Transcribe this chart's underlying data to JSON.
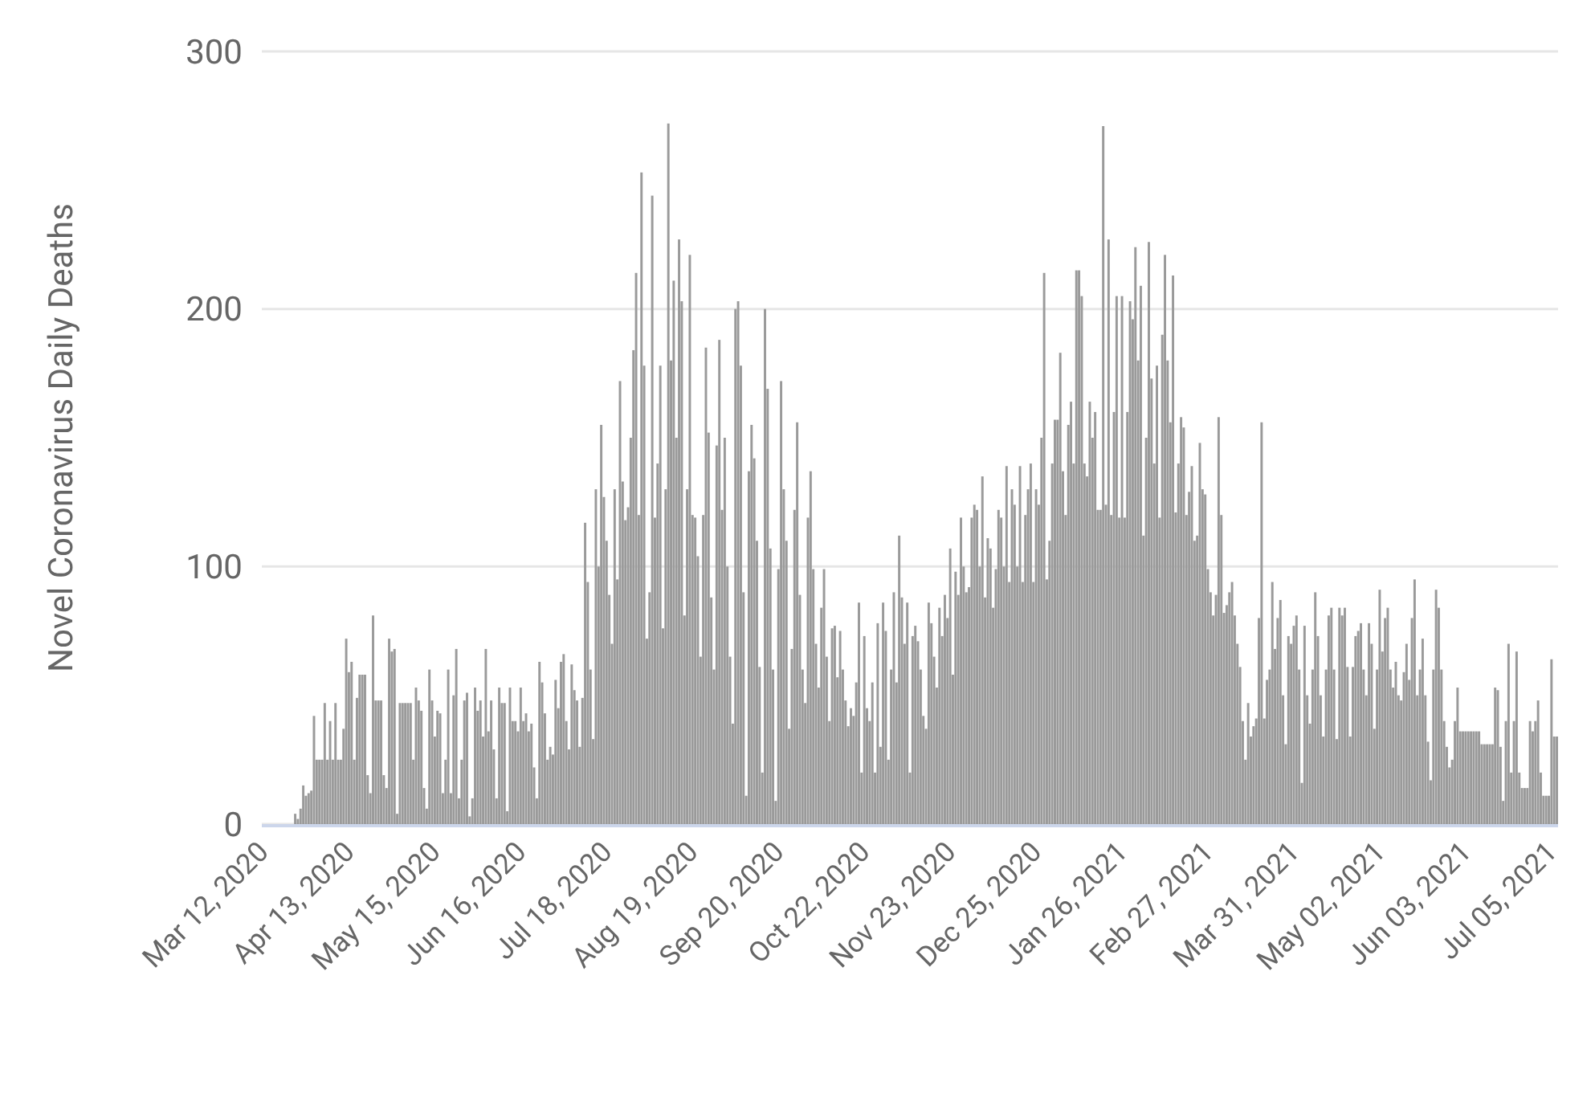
{
  "chart_data": {
    "type": "bar",
    "ylabel": "Novel Coronavirus Daily Deaths",
    "color": "#9a9a9a",
    "ylim": [
      0,
      300
    ],
    "yticks": [
      0,
      100,
      200,
      300
    ],
    "grid": "y",
    "categories": [
      "Mar 12, 2020",
      null,
      null,
      null,
      null,
      null,
      null,
      null,
      null,
      null,
      null,
      null,
      null,
      null,
      null,
      null,
      null,
      null,
      null,
      null,
      null,
      null,
      null,
      null,
      null,
      null,
      null,
      null,
      null,
      null,
      null,
      null,
      "Apr 13, 2020",
      null,
      null,
      null,
      null,
      null,
      null,
      null,
      null,
      null,
      null,
      null,
      null,
      null,
      null,
      null,
      null,
      null,
      null,
      null,
      null,
      null,
      null,
      null,
      null,
      null,
      null,
      null,
      null,
      null,
      null,
      null,
      "May 15, 2020",
      null,
      null,
      null,
      null,
      null,
      null,
      null,
      null,
      null,
      null,
      null,
      null,
      null,
      null,
      null,
      null,
      null,
      null,
      null,
      null,
      null,
      null,
      null,
      null,
      null,
      null,
      null,
      null,
      null,
      null,
      null,
      "Jun 16, 2020",
      null,
      null,
      null,
      null,
      null,
      null,
      null,
      null,
      null,
      null,
      null,
      null,
      null,
      null,
      null,
      null,
      null,
      null,
      null,
      null,
      null,
      null,
      null,
      null,
      null,
      null,
      null,
      null,
      null,
      null,
      null,
      "Jul 18, 2020",
      null,
      null,
      null,
      null,
      null,
      null,
      null,
      null,
      null,
      null,
      null,
      null,
      null,
      null,
      null,
      null,
      null,
      null,
      null,
      null,
      null,
      null,
      null,
      null,
      null,
      null,
      null,
      null,
      null,
      null,
      null,
      "Aug 19, 2020",
      null,
      null,
      null,
      null,
      null,
      null,
      null,
      null,
      null,
      null,
      null,
      null,
      null,
      null,
      null,
      null,
      null,
      null,
      null,
      null,
      null,
      null,
      null,
      null,
      null,
      null,
      null,
      null,
      null,
      null,
      null,
      "Sep 20, 2020",
      null,
      null,
      null,
      null,
      null,
      null,
      null,
      null,
      null,
      null,
      null,
      null,
      null,
      null,
      null,
      null,
      null,
      null,
      null,
      null,
      null,
      null,
      null,
      null,
      null,
      null,
      null,
      null,
      null,
      null,
      null,
      "Oct 22, 2020",
      null,
      null,
      null,
      null,
      null,
      null,
      null,
      null,
      null,
      null,
      null,
      null,
      null,
      null,
      null,
      null,
      null,
      null,
      null,
      null,
      null,
      null,
      null,
      null,
      null,
      null,
      null,
      null,
      null,
      null,
      null,
      "Nov 23, 2020",
      null,
      null,
      null,
      null,
      null,
      null,
      null,
      null,
      null,
      null,
      null,
      null,
      null,
      null,
      null,
      null,
      null,
      null,
      null,
      null,
      null,
      null,
      null,
      null,
      null,
      null,
      null,
      null,
      null,
      null,
      null,
      "Dec 25, 2020",
      null,
      null,
      null,
      null,
      null,
      null,
      null,
      null,
      null,
      null,
      null,
      null,
      null,
      null,
      null,
      null,
      null,
      null,
      null,
      null,
      null,
      null,
      null,
      null,
      null,
      null,
      null,
      null,
      null,
      null,
      null,
      "Jan 26, 2021",
      null,
      null,
      null,
      null,
      null,
      null,
      null,
      null,
      null,
      null,
      null,
      null,
      null,
      null,
      null,
      null,
      null,
      null,
      null,
      null,
      null,
      null,
      null,
      null,
      null,
      null,
      null,
      null,
      null,
      null,
      null,
      "Feb 27, 2021",
      null,
      null,
      null,
      null,
      null,
      null,
      null,
      null,
      null,
      null,
      null,
      null,
      null,
      null,
      null,
      null,
      null,
      null,
      null,
      null,
      null,
      null,
      null,
      null,
      null,
      null,
      null,
      null,
      null,
      null,
      null,
      "Mar 31, 2021",
      null,
      null,
      null,
      null,
      null,
      null,
      null,
      null,
      null,
      null,
      null,
      null,
      null,
      null,
      null,
      null,
      null,
      null,
      null,
      null,
      null,
      null,
      null,
      null,
      null,
      null,
      null,
      null,
      null,
      null,
      null,
      "May 02, 2021",
      null,
      null,
      null,
      null,
      null,
      null,
      null,
      null,
      null,
      null,
      null,
      null,
      null,
      null,
      null,
      null,
      null,
      null,
      null,
      null,
      null,
      null,
      null,
      null,
      null,
      null,
      null,
      null,
      null,
      null,
      null,
      "Jun 03, 2021",
      null,
      null,
      null,
      null,
      null,
      null,
      null,
      null,
      null,
      null,
      null,
      null,
      null,
      null,
      null,
      null,
      null,
      null,
      null,
      null,
      null,
      null,
      null,
      null,
      null,
      null,
      null,
      null,
      null,
      null,
      null,
      "Jul 05, 2021",
      null,
      null
    ],
    "values": [
      0,
      0,
      0,
      0,
      0,
      0,
      0,
      0,
      0,
      0,
      0,
      0,
      4,
      2,
      6,
      15,
      11,
      12,
      13,
      42,
      25,
      25,
      25,
      47,
      25,
      40,
      25,
      47,
      25,
      25,
      37,
      72,
      59,
      63,
      25,
      49,
      58,
      58,
      58,
      19,
      12,
      81,
      48,
      48,
      48,
      19,
      14,
      72,
      67,
      68,
      4,
      47,
      47,
      47,
      47,
      47,
      25,
      53,
      48,
      44,
      14,
      6,
      60,
      48,
      34,
      44,
      43,
      12,
      25,
      60,
      12,
      50,
      68,
      10,
      25,
      48,
      51,
      3,
      10,
      53,
      44,
      48,
      34,
      68,
      36,
      48,
      29,
      10,
      53,
      47,
      47,
      5,
      53,
      40,
      40,
      36,
      53,
      40,
      43,
      36,
      39,
      22,
      10,
      63,
      55,
      43,
      25,
      30,
      27,
      56,
      45,
      63,
      66,
      40,
      29,
      62,
      52,
      48,
      30,
      49,
      117,
      94,
      60,
      33,
      130,
      100,
      155,
      127,
      110,
      89,
      70,
      130,
      95,
      172,
      133,
      118,
      123,
      150,
      184,
      214,
      120,
      253,
      178,
      72,
      90,
      244,
      119,
      140,
      178,
      76,
      130,
      272,
      180,
      211,
      150,
      227,
      203,
      81,
      130,
      221,
      120,
      119,
      104,
      65,
      120,
      185,
      152,
      88,
      60,
      147,
      188,
      122,
      150,
      100,
      65,
      39,
      200,
      203,
      178,
      90,
      11,
      137,
      155,
      142,
      110,
      61,
      20,
      200,
      169,
      107,
      60,
      9,
      99,
      172,
      130,
      110,
      37,
      68,
      122,
      156,
      89,
      60,
      47,
      119,
      137,
      99,
      70,
      53,
      84,
      99,
      65,
      40,
      76,
      77,
      57,
      75,
      60,
      48,
      38,
      45,
      42,
      55,
      86,
      20,
      73,
      45,
      40,
      55,
      20,
      78,
      30,
      86,
      75,
      25,
      60,
      90,
      55,
      112,
      88,
      70,
      86,
      20,
      73,
      77,
      71,
      60,
      42,
      37,
      86,
      78,
      65,
      53,
      84,
      73,
      89,
      80,
      107,
      58,
      98,
      89,
      119,
      100,
      90,
      92,
      119,
      124,
      122,
      100,
      135,
      88,
      111,
      107,
      84,
      99,
      122,
      119,
      100,
      139,
      94,
      130,
      124,
      100,
      139,
      94,
      120,
      130,
      140,
      94,
      130,
      124,
      150,
      214,
      95,
      110,
      140,
      157,
      157,
      183,
      137,
      120,
      155,
      164,
      140,
      215,
      215,
      205,
      140,
      135,
      164,
      150,
      160,
      122,
      122,
      271,
      124,
      227,
      120,
      160,
      205,
      119,
      205,
      119,
      160,
      203,
      196,
      224,
      180,
      209,
      112,
      150,
      226,
      173,
      140,
      178,
      119,
      190,
      221,
      180,
      156,
      213,
      121,
      140,
      158,
      154,
      120,
      129,
      139,
      110,
      112,
      148,
      130,
      128,
      99,
      90,
      81,
      89,
      158,
      120,
      82,
      85,
      90,
      94,
      81,
      70,
      61,
      40,
      25,
      47,
      34,
      38,
      41,
      80,
      156,
      41,
      56,
      60,
      94,
      68,
      80,
      87,
      50,
      31,
      73,
      70,
      77,
      81,
      60,
      16,
      77,
      50,
      39,
      60,
      90,
      73,
      50,
      34,
      60,
      81,
      84,
      60,
      33,
      84,
      81,
      84,
      61,
      34,
      61,
      73,
      75,
      78,
      60,
      50,
      78,
      70,
      37,
      60,
      91,
      67,
      80,
      84,
      60,
      53,
      63,
      50,
      48,
      59,
      70,
      56,
      80,
      95,
      50,
      60,
      72,
      50,
      32,
      17,
      60,
      91,
      84,
      60,
      40,
      30,
      22,
      25,
      40,
      53,
      36,
      36,
      36,
      36,
      36,
      36,
      36,
      36,
      31,
      31,
      31,
      31,
      31,
      53,
      52,
      30,
      9,
      40,
      70,
      20,
      40,
      67,
      20,
      14,
      14,
      14,
      40,
      36,
      40,
      48,
      20,
      11,
      11,
      11,
      64,
      34,
      34
    ]
  }
}
